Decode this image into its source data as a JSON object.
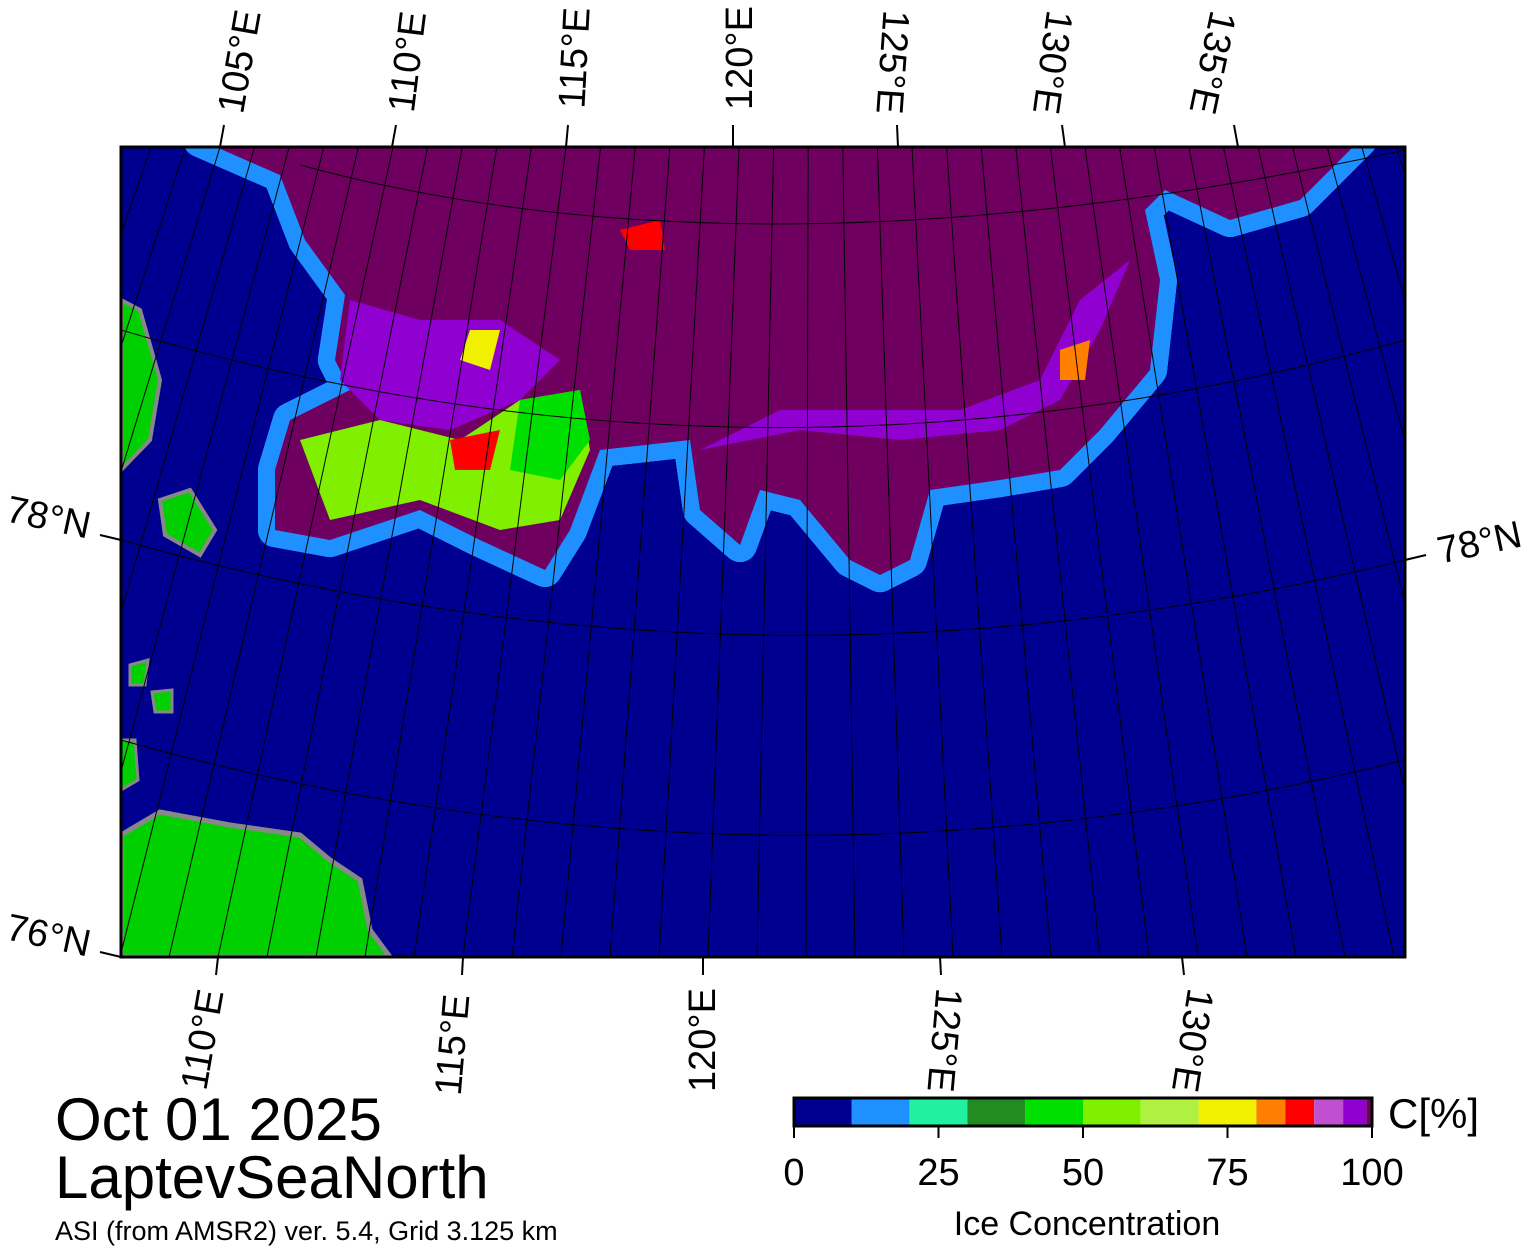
{
  "map": {
    "top_labels": [
      "105°E",
      "110°E",
      "115°E",
      "120°E",
      "125°E",
      "130°E",
      "135°E"
    ],
    "bottom_labels": [
      "110°E",
      "115°E",
      "120°E",
      "125°E",
      "130°E"
    ],
    "left_labels": [
      "78°N",
      "76°N"
    ],
    "right_labels": [
      "78°N"
    ]
  },
  "date": "Oct 01 2025",
  "region": "LaptevSeaNorth",
  "source": "ASI (from AMSR2) ver. 5.4,  Grid 3.125 km",
  "colorbar": {
    "unit": "C[%]",
    "label": "Ice Concentration",
    "lim": [
      0,
      100
    ],
    "ticks": [
      0,
      25,
      50,
      75,
      100
    ],
    "bounds": [
      0,
      10,
      20,
      30,
      40,
      50,
      60,
      70,
      80,
      85,
      90,
      95,
      99,
      100
    ],
    "colors": [
      "#000090",
      "#1e90ff",
      "#20f0a0",
      "#228b22",
      "#00e000",
      "#80f000",
      "#b0f040",
      "#f0f000",
      "#ff8000",
      "#ff0000",
      "#c050d0",
      "#9000d0",
      "#700060"
    ]
  }
}
